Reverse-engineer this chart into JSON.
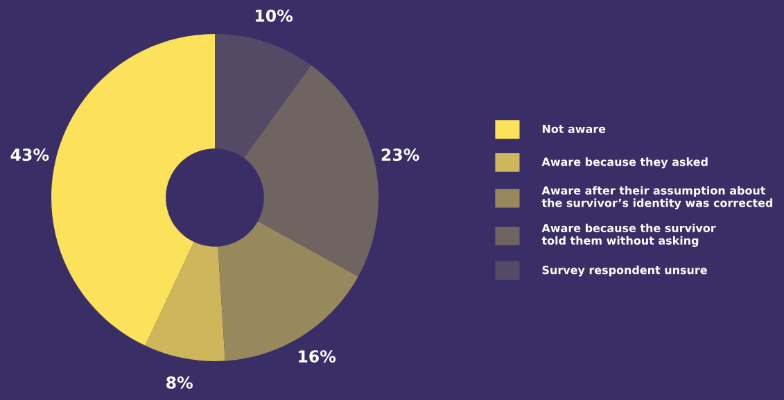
{
  "chart_data": {
    "type": "donut",
    "categories": [
      "Not aware",
      "Aware because they asked",
      "Aware after their assumption about\nthe survivor’s identity was corrected",
      "Aware because the survivor\ntold them without asking",
      "Survey respondent unsure"
    ],
    "values": [
      43,
      8,
      16,
      23,
      10
    ],
    "colors": [
      "#fce15a",
      "#cdb65b",
      "#98895d",
      "#706460",
      "#554a65"
    ],
    "value_labels": [
      "43%",
      "8%",
      "16%",
      "23%",
      "10%"
    ],
    "legend": "right"
  }
}
